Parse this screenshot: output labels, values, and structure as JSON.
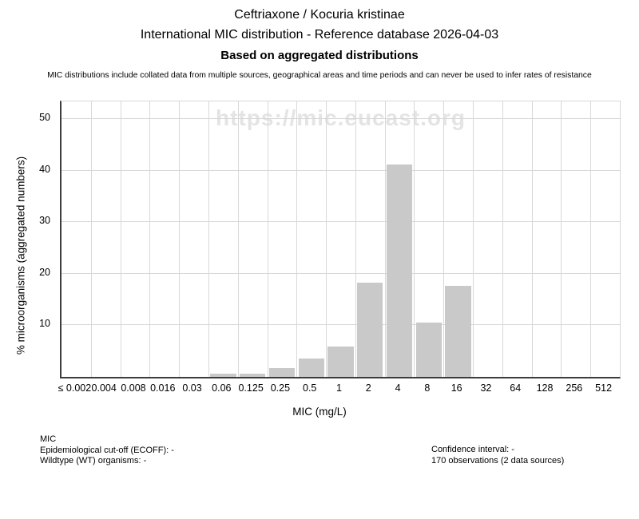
{
  "header": {
    "title": "Ceftriaxone / Kocuria kristinae",
    "subtitle": "International MIC distribution - Reference database 2026-04-03",
    "subtitle2": "Based on aggregated distributions",
    "disclaimer": "MIC distributions include collated data from multiple sources, geographical areas and time periods and can never be used to infer rates of resistance"
  },
  "watermark": "https://mic.eucast.org",
  "chart_data": {
    "type": "bar",
    "title": "Ceftriaxone / Kocuria kristinae — International MIC distribution",
    "categories": [
      "≤ 0.002",
      "0.004",
      "0.008",
      "0.016",
      "0.03",
      "0.06",
      "0.125",
      "0.25",
      "0.5",
      "1",
      "2",
      "4",
      "8",
      "16",
      "32",
      "64",
      "128",
      "256",
      "512"
    ],
    "values": [
      0,
      0,
      0,
      0,
      0,
      0.59,
      0.59,
      1.76,
      3.53,
      5.88,
      18.24,
      41.18,
      10.59,
      17.65,
      0,
      0,
      0,
      0,
      0
    ],
    "xlabel": "MIC (mg/L)",
    "ylabel": "% microorganisms (aggregated numbers)",
    "ylim": [
      0,
      53.4
    ],
    "yticks": [
      10,
      20,
      30,
      40,
      50
    ],
    "grid": true,
    "legend": false,
    "bar_color": "#c9c9c9",
    "grid_color": "#d8d8d8",
    "axis_color": "#3c3c3c",
    "watermark_color": "#e4e4e4"
  },
  "footer": {
    "left": [
      "MIC",
      "Epidemiological cut-off (ECOFF): -",
      "Wildtype (WT) organisms:  -"
    ],
    "right": [
      "Confidence interval: -",
      "170 observations (2 data sources)"
    ]
  }
}
